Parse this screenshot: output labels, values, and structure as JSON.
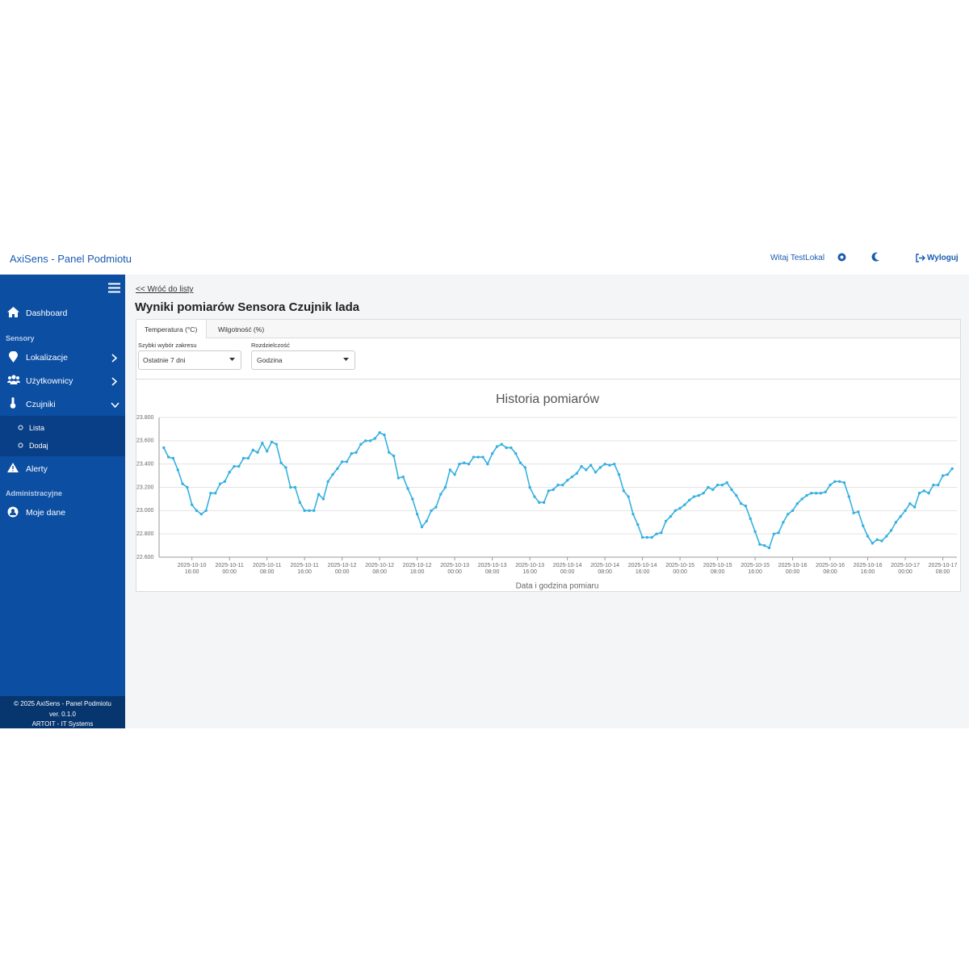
{
  "header": {
    "brand": "AxiSens - Panel Podmiotu",
    "greeting": "Witaj TestLokal",
    "logout": "Wyloguj"
  },
  "sidebar": {
    "items": [
      "Dashboard"
    ],
    "section_sensors": "Sensory",
    "sensor_items": [
      "Lokalizacje",
      "Użytkownicy",
      "Czujniki"
    ],
    "sub_items": [
      "Lista",
      "Dodaj"
    ],
    "alerts": "Alerty",
    "section_admin": "Administracyjne",
    "admin_items": [
      "Moje dane"
    ],
    "footer": [
      "© 2025 AxiSens - Panel Podmiotu",
      "ver. 0.1.0",
      "ARTOIT - IT Systems"
    ]
  },
  "content": {
    "back_link": "<< Wróć do listy",
    "title": "Wyniki pomiarów Sensora Czujnik lada",
    "tabs": [
      "Temperatura (°C)",
      "Wilgotność (%)"
    ],
    "filters": [
      {
        "label": "Szybki wybór zakresu",
        "value": "Ostatnie 7 dni"
      },
      {
        "label": "Rozdzielczość",
        "value": "Godzina"
      }
    ]
  },
  "chart_data": {
    "type": "line",
    "title": "Historia pomiarów",
    "x_label": "Data i godzina pomiaru",
    "color": "#36b1e0",
    "grid": true,
    "xlim": [
      "2025-10-10 09:00",
      "2025-10-17 11:00"
    ],
    "xticks": [
      "2025-10-10 16:00",
      "2025-10-11 00:00",
      "2025-10-11 08:00",
      "2025-10-11 16:00",
      "2025-10-12 00:00",
      "2025-10-12 08:00",
      "2025-10-12 16:00",
      "2025-10-13 00:00",
      "2025-10-13 08:00",
      "2025-10-13 16:00",
      "2025-10-14 00:00",
      "2025-10-14 08:00",
      "2025-10-14 16:00",
      "2025-10-15 00:00",
      "2025-10-15 08:00",
      "2025-10-15 16:00",
      "2025-10-16 00:00",
      "2025-10-16 08:00",
      "2025-10-16 16:00",
      "2025-10-17 00:00",
      "2025-10-17 08:00"
    ],
    "ylim": [
      22.6,
      23.8
    ],
    "yticks": [
      {
        "value": 22.6,
        "label": "22.600"
      },
      {
        "value": 22.8,
        "label": "22.800"
      },
      {
        "value": 23.0,
        "label": "23.000"
      },
      {
        "value": 23.2,
        "label": "23.200"
      },
      {
        "value": 23.4,
        "label": "23.400"
      },
      {
        "value": 23.6,
        "label": "23.600"
      },
      {
        "value": 23.8,
        "label": "23.800"
      }
    ],
    "x": [
      "2025-10-10 10:00",
      "2025-10-10 11:00",
      "2025-10-10 12:00",
      "2025-10-10 13:00",
      "2025-10-10 14:00",
      "2025-10-10 15:00",
      "2025-10-10 16:00",
      "2025-10-10 17:00",
      "2025-10-10 18:00",
      "2025-10-10 19:00",
      "2025-10-10 20:00",
      "2025-10-10 21:00",
      "2025-10-10 22:00",
      "2025-10-10 23:00",
      "2025-10-11 00:00",
      "2025-10-11 01:00",
      "2025-10-11 02:00",
      "2025-10-11 03:00",
      "2025-10-11 04:00",
      "2025-10-11 05:00",
      "2025-10-11 06:00",
      "2025-10-11 07:00",
      "2025-10-11 08:00",
      "2025-10-11 09:00",
      "2025-10-11 10:00",
      "2025-10-11 11:00",
      "2025-10-11 12:00",
      "2025-10-11 13:00",
      "2025-10-11 14:00",
      "2025-10-11 15:00",
      "2025-10-11 16:00",
      "2025-10-11 17:00",
      "2025-10-11 18:00",
      "2025-10-11 19:00",
      "2025-10-11 20:00",
      "2025-10-11 21:00",
      "2025-10-11 22:00",
      "2025-10-11 23:00",
      "2025-10-12 00:00",
      "2025-10-12 01:00",
      "2025-10-12 02:00",
      "2025-10-12 03:00",
      "2025-10-12 04:00",
      "2025-10-12 05:00",
      "2025-10-12 06:00",
      "2025-10-12 07:00",
      "2025-10-12 08:00",
      "2025-10-12 09:00",
      "2025-10-12 10:00",
      "2025-10-12 11:00",
      "2025-10-12 12:00",
      "2025-10-12 13:00",
      "2025-10-12 14:00",
      "2025-10-12 15:00",
      "2025-10-12 16:00",
      "2025-10-12 17:00",
      "2025-10-12 18:00",
      "2025-10-12 19:00",
      "2025-10-12 20:00",
      "2025-10-12 21:00",
      "2025-10-12 22:00",
      "2025-10-12 23:00",
      "2025-10-13 00:00",
      "2025-10-13 01:00",
      "2025-10-13 02:00",
      "2025-10-13 03:00",
      "2025-10-13 04:00",
      "2025-10-13 05:00",
      "2025-10-13 06:00",
      "2025-10-13 07:00",
      "2025-10-13 08:00",
      "2025-10-13 09:00",
      "2025-10-13 10:00",
      "2025-10-13 11:00",
      "2025-10-13 12:00",
      "2025-10-13 13:00",
      "2025-10-13 14:00",
      "2025-10-13 15:00",
      "2025-10-13 16:00",
      "2025-10-13 17:00",
      "2025-10-13 18:00",
      "2025-10-13 19:00",
      "2025-10-13 20:00",
      "2025-10-13 21:00",
      "2025-10-13 22:00",
      "2025-10-13 23:00",
      "2025-10-14 00:00",
      "2025-10-14 01:00",
      "2025-10-14 02:00",
      "2025-10-14 03:00",
      "2025-10-14 04:00",
      "2025-10-14 05:00",
      "2025-10-14 06:00",
      "2025-10-14 07:00",
      "2025-10-14 08:00",
      "2025-10-14 09:00",
      "2025-10-14 10:00",
      "2025-10-14 11:00",
      "2025-10-14 12:00",
      "2025-10-14 13:00",
      "2025-10-14 14:00",
      "2025-10-14 15:00",
      "2025-10-14 16:00",
      "2025-10-14 17:00",
      "2025-10-14 18:00",
      "2025-10-14 19:00",
      "2025-10-14 20:00",
      "2025-10-14 21:00",
      "2025-10-14 22:00",
      "2025-10-14 23:00",
      "2025-10-15 00:00",
      "2025-10-15 01:00",
      "2025-10-15 02:00",
      "2025-10-15 03:00",
      "2025-10-15 04:00",
      "2025-10-15 05:00",
      "2025-10-15 06:00",
      "2025-10-15 07:00",
      "2025-10-15 08:00",
      "2025-10-15 09:00",
      "2025-10-15 10:00",
      "2025-10-15 11:00",
      "2025-10-15 12:00",
      "2025-10-15 13:00",
      "2025-10-15 14:00",
      "2025-10-15 15:00",
      "2025-10-15 16:00",
      "2025-10-15 17:00",
      "2025-10-15 18:00",
      "2025-10-15 19:00",
      "2025-10-15 20:00",
      "2025-10-15 21:00",
      "2025-10-15 22:00",
      "2025-10-15 23:00",
      "2025-10-16 00:00",
      "2025-10-16 01:00",
      "2025-10-16 02:00",
      "2025-10-16 03:00",
      "2025-10-16 04:00",
      "2025-10-16 05:00",
      "2025-10-16 06:00",
      "2025-10-16 07:00",
      "2025-10-16 08:00",
      "2025-10-16 09:00",
      "2025-10-16 10:00",
      "2025-10-16 11:00",
      "2025-10-16 12:00",
      "2025-10-16 13:00",
      "2025-10-16 14:00",
      "2025-10-16 15:00",
      "2025-10-16 16:00",
      "2025-10-16 17:00",
      "2025-10-16 18:00",
      "2025-10-16 19:00",
      "2025-10-16 20:00",
      "2025-10-16 21:00",
      "2025-10-16 22:00",
      "2025-10-16 23:00",
      "2025-10-17 00:00",
      "2025-10-17 01:00",
      "2025-10-17 02:00",
      "2025-10-17 03:00",
      "2025-10-17 04:00",
      "2025-10-17 05:00",
      "2025-10-17 06:00",
      "2025-10-17 07:00",
      "2025-10-17 08:00",
      "2025-10-17 09:00",
      "2025-10-17 10:00"
    ],
    "values": [
      23.54,
      23.46,
      23.45,
      23.35,
      23.23,
      23.2,
      23.05,
      23.0,
      22.97,
      23.0,
      23.15,
      23.15,
      23.23,
      23.25,
      23.33,
      23.38,
      23.38,
      23.45,
      23.45,
      23.52,
      23.5,
      23.58,
      23.51,
      23.59,
      23.57,
      23.41,
      23.37,
      23.2,
      23.2,
      23.07,
      23.0,
      23.0,
      23.0,
      23.14,
      23.1,
      23.25,
      23.31,
      23.36,
      23.42,
      23.42,
      23.49,
      23.5,
      23.57,
      23.6,
      23.6,
      23.62,
      23.67,
      23.65,
      23.5,
      23.47,
      23.28,
      23.29,
      23.19,
      23.1,
      22.97,
      22.86,
      22.91,
      23.0,
      23.03,
      23.14,
      23.2,
      23.35,
      23.31,
      23.4,
      23.41,
      23.4,
      23.46,
      23.46,
      23.46,
      23.4,
      23.49,
      23.55,
      23.57,
      23.54,
      23.54,
      23.49,
      23.41,
      23.37,
      23.2,
      23.12,
      23.07,
      23.07,
      23.17,
      23.18,
      23.22,
      23.22,
      23.26,
      23.29,
      23.32,
      23.38,
      23.35,
      23.39,
      23.33,
      23.37,
      23.4,
      23.39,
      23.4,
      23.31,
      23.17,
      23.12,
      22.97,
      22.88,
      22.77,
      22.77,
      22.77,
      22.8,
      22.81,
      22.91,
      22.95,
      23.0,
      23.02,
      23.05,
      23.09,
      23.12,
      23.13,
      23.15,
      23.2,
      23.18,
      23.22,
      23.22,
      23.24,
      23.18,
      23.13,
      23.06,
      23.04,
      22.93,
      22.82,
      22.71,
      22.7,
      22.68,
      22.8,
      22.81,
      22.9,
      22.97,
      23.0,
      23.06,
      23.1,
      23.13,
      23.15,
      23.15,
      23.15,
      23.16,
      23.22,
      23.25,
      23.25,
      23.24,
      23.12,
      22.98,
      22.99,
      22.87,
      22.78,
      22.72,
      22.75,
      22.74,
      22.78,
      22.83,
      22.9,
      22.95,
      23.0,
      23.06,
      23.03,
      23.15,
      23.17,
      23.15,
      23.22,
      23.22,
      23.3,
      23.31,
      23.36
    ]
  }
}
